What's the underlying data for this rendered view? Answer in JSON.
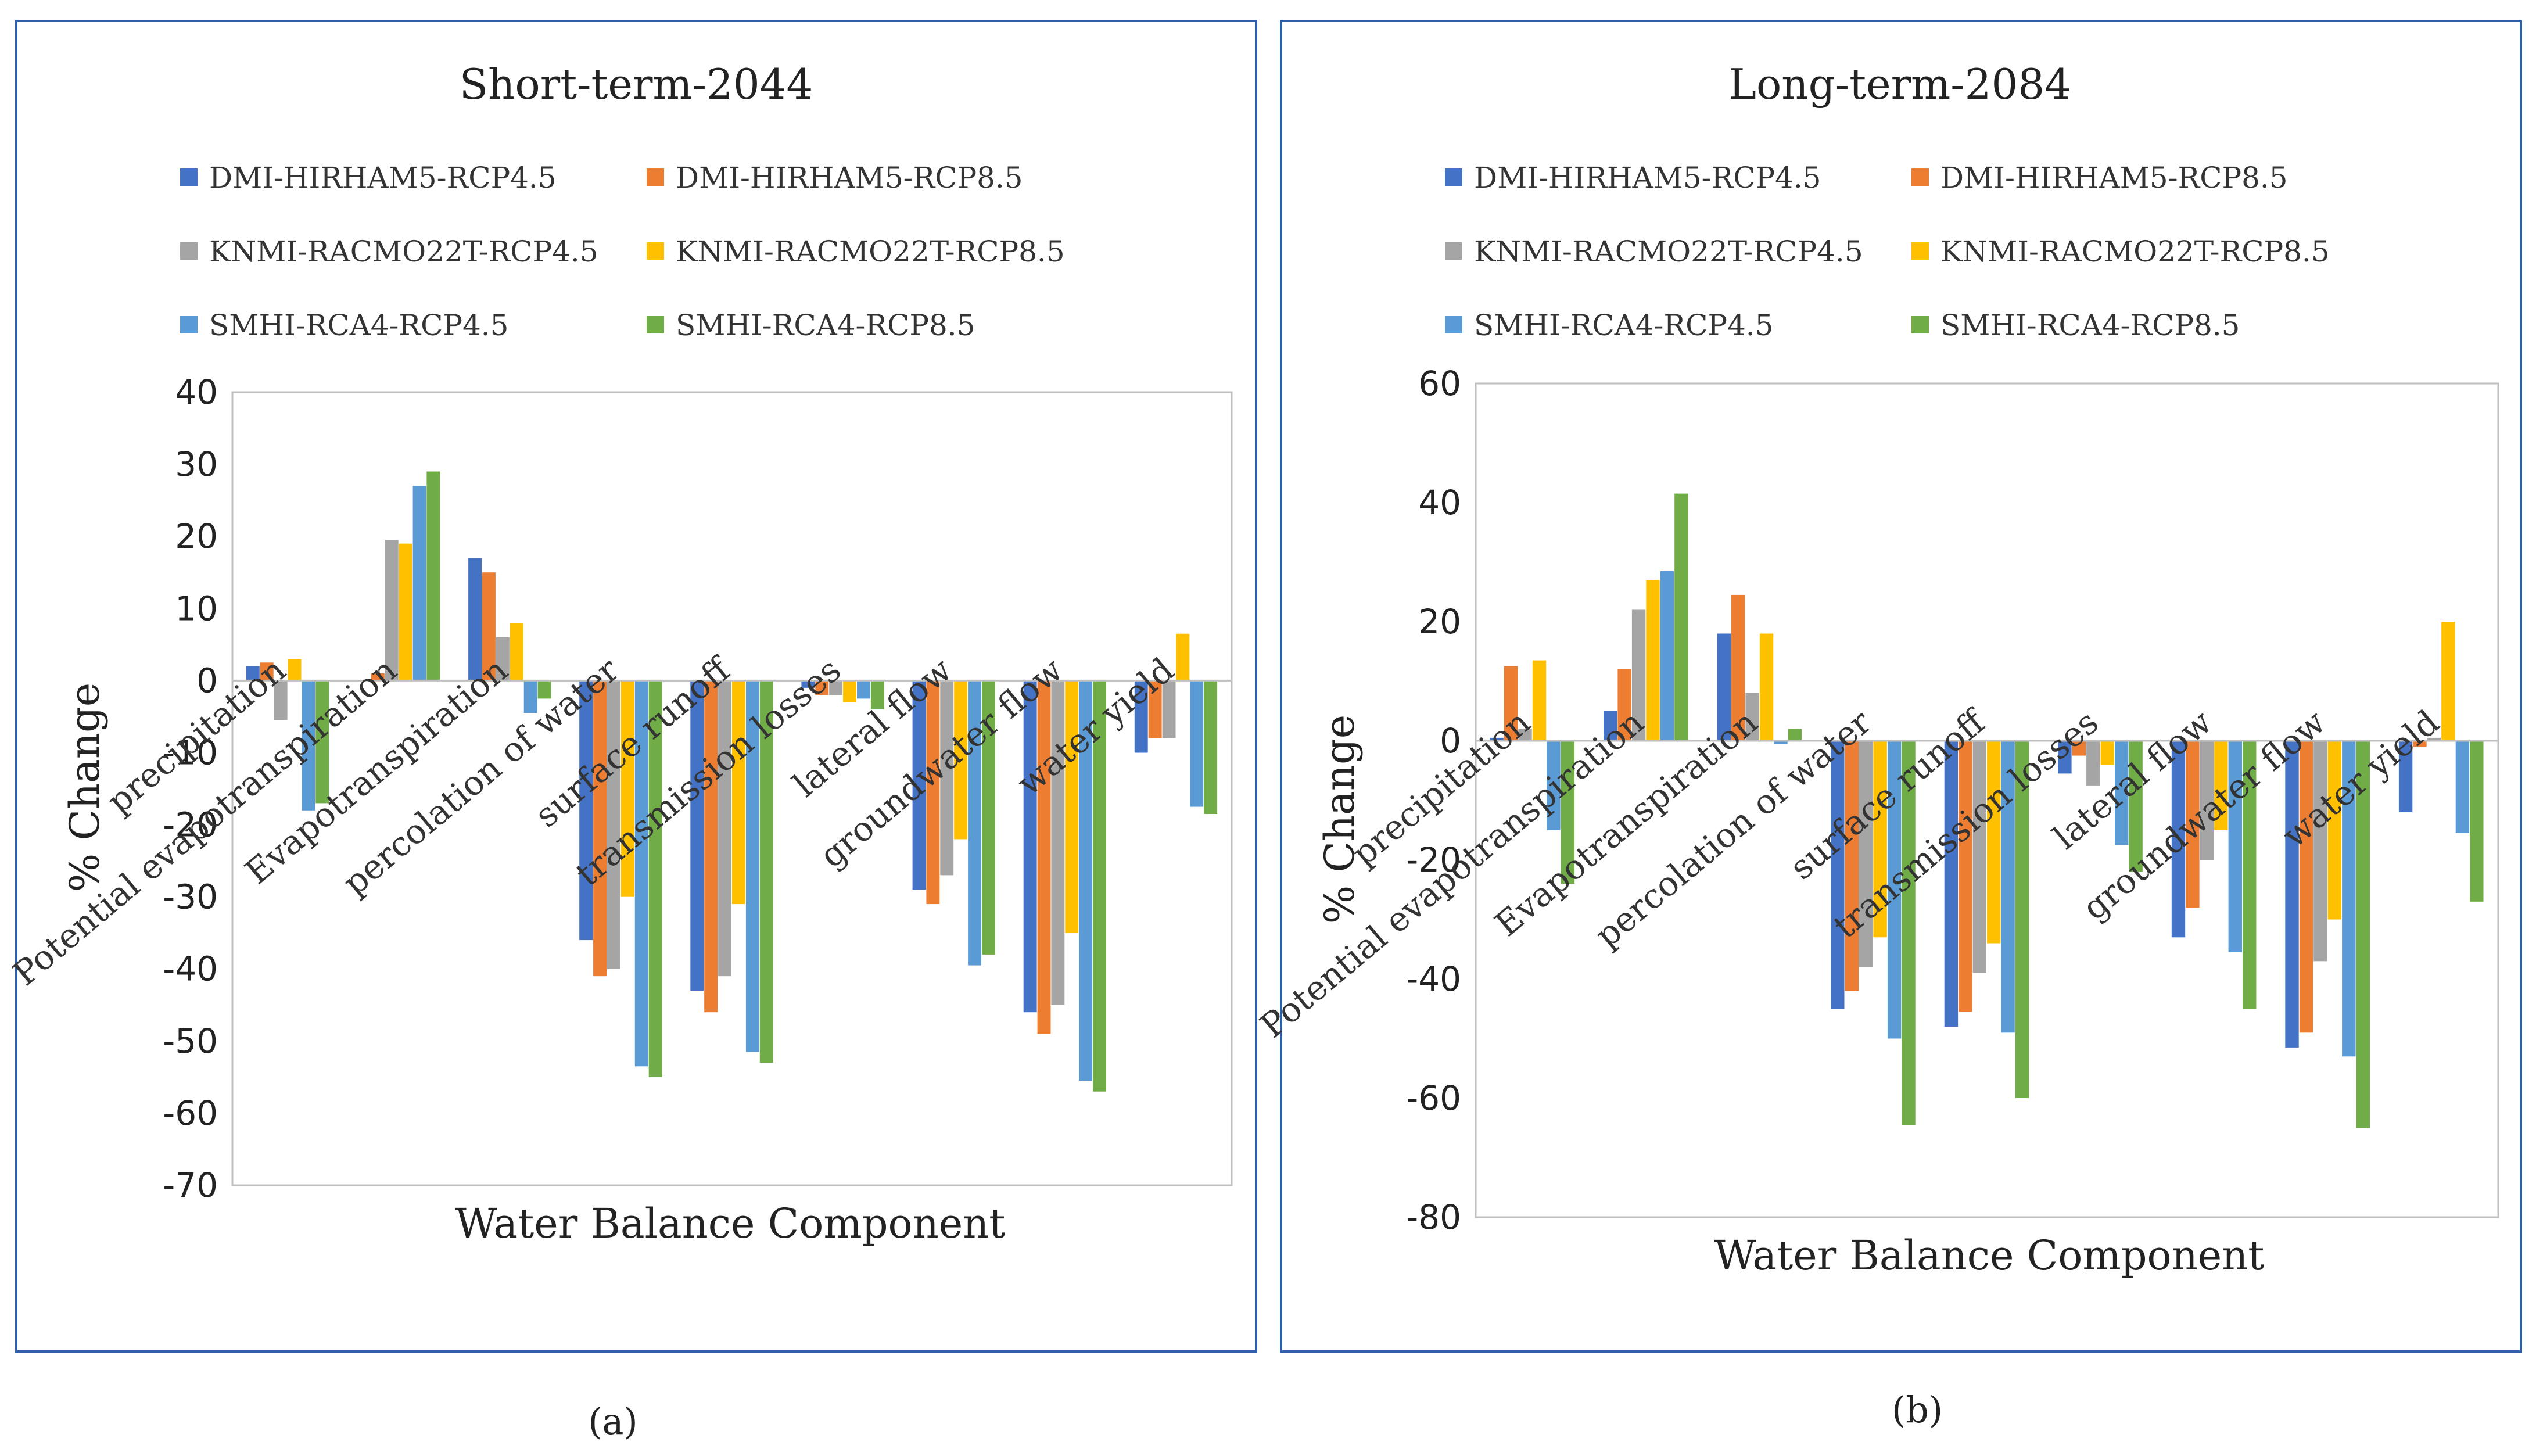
{
  "chart_data": [
    {
      "type": "bar",
      "panel_label": "(a)",
      "title": "Short-term-2044",
      "xlabel": "Water Balance Component",
      "ylabel": "% Change",
      "ylim": [
        -70,
        40
      ],
      "yticks": [
        40,
        30,
        20,
        10,
        0,
        -10,
        -20,
        -30,
        -40,
        -50,
        -60,
        -70
      ],
      "grid": false,
      "legend_position": "top",
      "categories": [
        "precipitation",
        "Potential evapotranspiration",
        "Evapotranspiration",
        "percolation of water",
        "surface runoff",
        "transmission losses",
        "lateral flow",
        "groundwater flow",
        "water yield"
      ],
      "series": [
        {
          "name": "DMI-HIRHAM5-RCP4.5",
          "color": "#4472C4",
          "values": [
            2,
            0,
            17,
            -36,
            -43,
            -1,
            -29,
            -46,
            -10
          ]
        },
        {
          "name": "DMI-HIRHAM5-RCP8.5",
          "color": "#ED7D31",
          "values": [
            2.5,
            1,
            15,
            -41,
            -46,
            -2,
            -31,
            -49,
            -8
          ]
        },
        {
          "name": "KNMI-RACMO22T-RCP4.5",
          "color": "#A5A5A5",
          "values": [
            -5.5,
            19.5,
            6,
            -40,
            -41,
            -2,
            -27,
            -45,
            -8
          ]
        },
        {
          "name": "KNMI-RACMO22T-RCP8.5",
          "color": "#FFC000",
          "values": [
            3,
            19,
            8,
            -30,
            -31,
            -3,
            -22,
            -35,
            6.5
          ]
        },
        {
          "name": "SMHI-RCA4-RCP4.5",
          "color": "#5B9BD5",
          "values": [
            -18,
            27,
            -4.5,
            -53.5,
            -51.5,
            -2.5,
            -39.5,
            -55.5,
            -17.5
          ]
        },
        {
          "name": "SMHI-RCA4-RCP8.5",
          "color": "#70AD47",
          "values": [
            -17,
            29,
            -2.5,
            -55,
            -53,
            -4,
            -38,
            -57,
            -18.5
          ]
        }
      ]
    },
    {
      "type": "bar",
      "panel_label": "(b)",
      "title": "Long-term-2084",
      "xlabel": "Water Balance Component",
      "ylabel": "% Change",
      "ylim": [
        -80,
        60
      ],
      "yticks": [
        60,
        40,
        20,
        0,
        -20,
        -40,
        -60,
        -80
      ],
      "grid": false,
      "legend_position": "top",
      "categories": [
        "precipitation",
        "Potential evapotranspiration",
        "Evapotranspiration",
        "percolation of water",
        "surface runoff",
        "transmission losses",
        "lateral flow",
        "groundwater flow",
        "water yield"
      ],
      "series": [
        {
          "name": "DMI-HIRHAM5-RCP4.5",
          "color": "#4472C4",
          "values": [
            0.5,
            5,
            18,
            -45,
            -48,
            -5.5,
            -33,
            -51.5,
            -12
          ]
        },
        {
          "name": "DMI-HIRHAM5-RCP8.5",
          "color": "#ED7D31",
          "values": [
            12.5,
            12,
            24.5,
            -42,
            -45.5,
            -2.5,
            -28,
            -49,
            -1
          ]
        },
        {
          "name": "KNMI-RACMO22T-RCP4.5",
          "color": "#A5A5A5",
          "values": [
            2,
            22,
            8,
            -38,
            -39,
            -7.5,
            -20,
            -37,
            0.5
          ]
        },
        {
          "name": "KNMI-RACMO22T-RCP8.5",
          "color": "#FFC000",
          "values": [
            13.5,
            27,
            18,
            -33,
            -34,
            -4,
            -15,
            -30,
            20
          ]
        },
        {
          "name": "SMHI-RCA4-RCP4.5",
          "color": "#5B9BD5",
          "values": [
            -15,
            28.5,
            -0.5,
            -50,
            -49,
            -17.5,
            -35.5,
            -53,
            -15.5
          ]
        },
        {
          "name": "SMHI-RCA4-RCP8.5",
          "color": "#70AD47",
          "values": [
            -24,
            41.5,
            2,
            -64.5,
            -60,
            -22,
            -45,
            -65,
            -27
          ]
        }
      ]
    }
  ]
}
